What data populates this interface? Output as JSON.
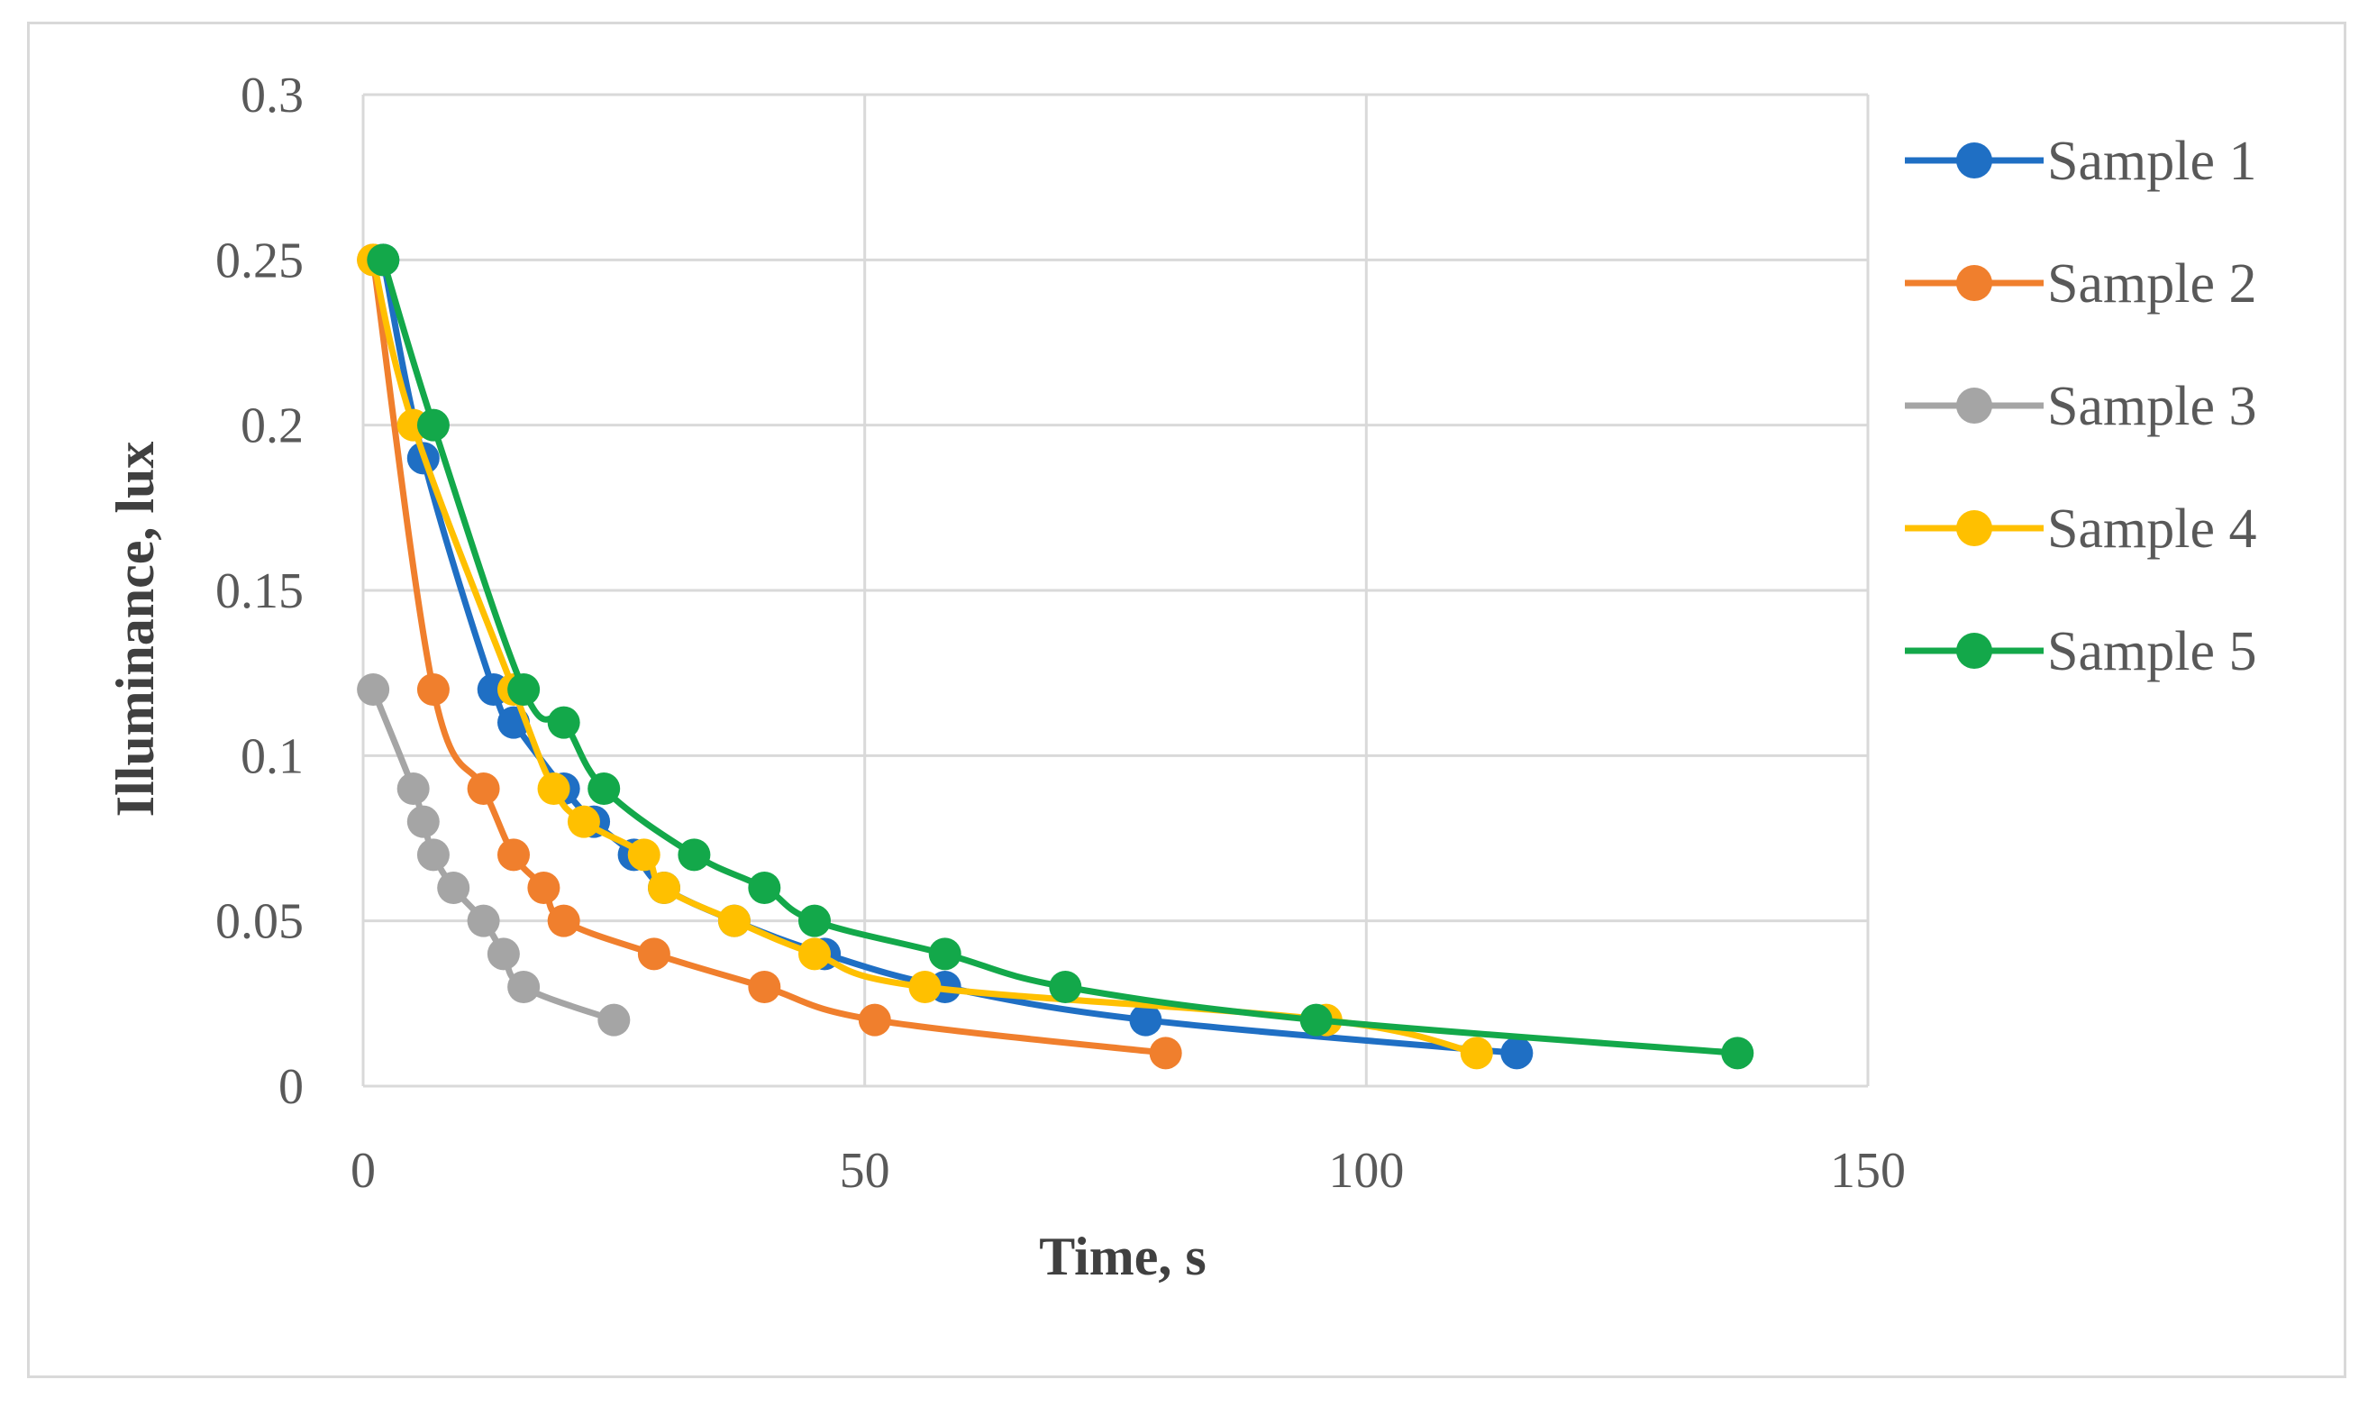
{
  "chart_data": {
    "type": "scatter",
    "xlabel": "Time, s",
    "ylabel": "Illuminance, lux",
    "xlim": [
      0,
      150
    ],
    "ylim": [
      0,
      0.3
    ],
    "x_ticks": [
      "0",
      "50",
      "100",
      "150"
    ],
    "y_ticks": [
      "0",
      "0.05",
      "0.1",
      "0.15",
      "0.2",
      "0.25",
      "0.3"
    ],
    "grid": true,
    "legend_position": "right",
    "series": [
      {
        "name": "Sample 1",
        "color": "#1f6fc4",
        "x": [
          2,
          6,
          13,
          15,
          20,
          23,
          27,
          30,
          37,
          46,
          58,
          78,
          115
        ],
        "y": [
          0.25,
          0.19,
          0.12,
          0.11,
          0.09,
          0.08,
          0.07,
          0.06,
          0.05,
          0.04,
          0.03,
          0.02,
          0.01
        ]
      },
      {
        "name": "Sample 2",
        "color": "#f07f2d",
        "x": [
          1,
          7,
          12,
          15,
          18,
          20,
          29,
          40,
          51,
          80
        ],
        "y": [
          0.25,
          0.12,
          0.09,
          0.07,
          0.06,
          0.05,
          0.04,
          0.03,
          0.02,
          0.01
        ]
      },
      {
        "name": "Sample 3",
        "color": "#a5a5a5",
        "x": [
          1,
          5,
          6,
          7,
          9,
          12,
          14,
          16,
          25
        ],
        "y": [
          0.12,
          0.09,
          0.08,
          0.07,
          0.06,
          0.05,
          0.04,
          0.03,
          0.02
        ]
      },
      {
        "name": "Sample 4",
        "color": "#ffc000",
        "x": [
          1,
          5,
          15,
          19,
          22,
          28,
          30,
          37,
          45,
          56,
          96,
          111
        ],
        "y": [
          0.25,
          0.2,
          0.12,
          0.09,
          0.08,
          0.07,
          0.06,
          0.05,
          0.04,
          0.03,
          0.02,
          0.01
        ]
      },
      {
        "name": "Sample 5",
        "color": "#13a84a",
        "x": [
          2,
          7,
          16,
          20,
          24,
          33,
          40,
          45,
          58,
          70,
          95,
          137
        ],
        "y": [
          0.25,
          0.2,
          0.12,
          0.11,
          0.09,
          0.07,
          0.06,
          0.05,
          0.04,
          0.03,
          0.02,
          0.01
        ]
      }
    ]
  }
}
